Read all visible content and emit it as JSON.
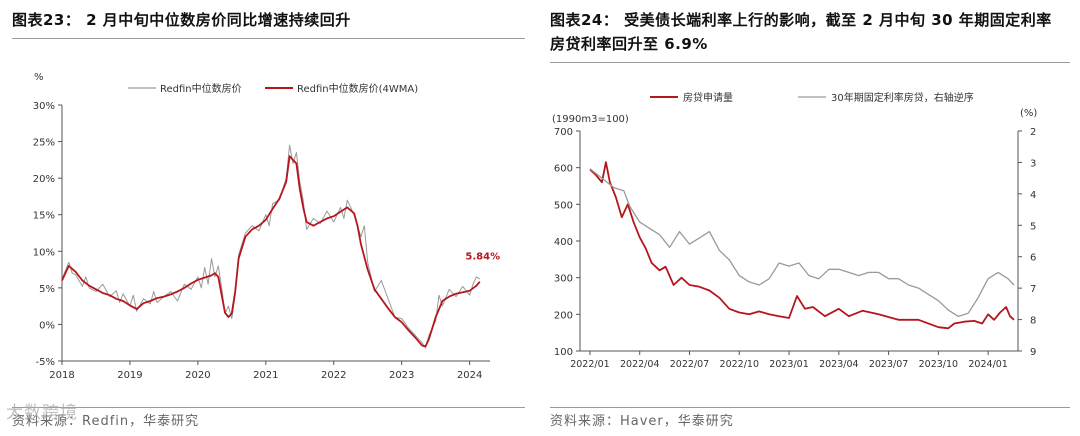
{
  "colors": {
    "red": "#b5161c",
    "grey": "#9a9a9a",
    "axis": "#555555",
    "text": "#333333"
  },
  "watermark": "大数跨境",
  "chart_data": [
    {
      "type": "line",
      "title": "图表23： 2 月中旬中位数房价同比增速持续回升",
      "ylabel": "%",
      "ylim": [
        -5,
        30
      ],
      "yticks": [
        -5,
        0,
        5,
        10,
        15,
        20,
        25,
        30
      ],
      "ytick_labels": [
        "-5%",
        "0%",
        "5%",
        "10%",
        "15%",
        "20%",
        "25%",
        "30%"
      ],
      "xlim": [
        2018,
        2024.3
      ],
      "xticks": [
        2018,
        2019,
        2020,
        2021,
        2022,
        2023,
        2024
      ],
      "xtick_labels": [
        "2018",
        "2019",
        "2020",
        "2021",
        "2022",
        "2023",
        "2024"
      ],
      "annotation": {
        "text": "5.84%",
        "x": 2024.12,
        "y": 5.84
      },
      "legend": "top-center",
      "series": [
        {
          "name": "Redfin中位数房价",
          "color": "#9a9a9a",
          "x": [
            2018.0,
            2018.1,
            2018.15,
            2018.2,
            2018.3,
            2018.35,
            2018.4,
            2018.5,
            2018.6,
            2018.7,
            2018.8,
            2018.85,
            2018.9,
            2019.0,
            2019.05,
            2019.1,
            2019.2,
            2019.3,
            2019.35,
            2019.4,
            2019.5,
            2019.6,
            2019.7,
            2019.8,
            2019.9,
            2020.0,
            2020.05,
            2020.1,
            2020.15,
            2020.2,
            2020.25,
            2020.3,
            2020.35,
            2020.4,
            2020.45,
            2020.5,
            2020.55,
            2020.6,
            2020.7,
            2020.8,
            2020.9,
            2021.0,
            2021.05,
            2021.1,
            2021.2,
            2021.3,
            2021.35,
            2021.4,
            2021.45,
            2021.5,
            2021.55,
            2021.6,
            2021.7,
            2021.8,
            2021.9,
            2022.0,
            2022.1,
            2022.15,
            2022.2,
            2022.3,
            2022.4,
            2022.45,
            2022.5,
            2022.6,
            2022.7,
            2022.8,
            2022.9,
            2023.0,
            2023.1,
            2023.2,
            2023.3,
            2023.35,
            2023.4,
            2023.5,
            2023.55,
            2023.6,
            2023.7,
            2023.8,
            2023.9,
            2024.0,
            2024.05,
            2024.1,
            2024.15
          ],
          "y": [
            6.2,
            8.5,
            7.0,
            6.8,
            5.2,
            6.5,
            5.0,
            4.5,
            5.5,
            3.8,
            4.6,
            3.0,
            4.2,
            2.5,
            4.0,
            1.8,
            3.5,
            2.8,
            4.5,
            3.0,
            3.8,
            4.5,
            3.2,
            5.5,
            4.8,
            6.5,
            5.0,
            7.8,
            5.5,
            9.0,
            6.5,
            8.0,
            5.0,
            1.5,
            2.5,
            0.8,
            4.0,
            9.5,
            12.5,
            13.5,
            12.8,
            15.0,
            13.5,
            16.5,
            17.0,
            20.0,
            24.5,
            22.0,
            23.5,
            19.5,
            17.0,
            13.0,
            14.5,
            13.8,
            15.5,
            14.0,
            16.0,
            14.5,
            17.0,
            15.0,
            12.0,
            13.5,
            8.5,
            4.5,
            6.0,
            3.5,
            1.0,
            0.8,
            -0.5,
            -1.5,
            -2.5,
            -3.2,
            -1.5,
            0.5,
            4.0,
            2.5,
            4.8,
            3.8,
            5.2,
            4.0,
            5.5,
            6.5,
            6.2
          ]
        },
        {
          "name": "Redfin中位数房价(4WMA)",
          "color": "#b5161c",
          "x": [
            2018.0,
            2018.1,
            2018.2,
            2018.3,
            2018.4,
            2018.5,
            2018.6,
            2018.7,
            2018.8,
            2018.9,
            2019.0,
            2019.1,
            2019.2,
            2019.3,
            2019.4,
            2019.5,
            2019.6,
            2019.7,
            2019.8,
            2019.9,
            2020.0,
            2020.1,
            2020.2,
            2020.25,
            2020.3,
            2020.35,
            2020.4,
            2020.45,
            2020.5,
            2020.55,
            2020.6,
            2020.7,
            2020.8,
            2020.9,
            2021.0,
            2021.1,
            2021.2,
            2021.3,
            2021.35,
            2021.4,
            2021.45,
            2021.5,
            2021.55,
            2021.6,
            2021.7,
            2021.8,
            2021.9,
            2022.0,
            2022.1,
            2022.2,
            2022.3,
            2022.35,
            2022.4,
            2022.5,
            2022.6,
            2022.7,
            2022.8,
            2022.9,
            2023.0,
            2023.1,
            2023.2,
            2023.3,
            2023.35,
            2023.4,
            2023.5,
            2023.6,
            2023.7,
            2023.8,
            2023.9,
            2024.0,
            2024.1,
            2024.15
          ],
          "y": [
            6.0,
            8.0,
            7.2,
            6.0,
            5.3,
            4.8,
            4.3,
            4.0,
            3.5,
            3.2,
            2.6,
            2.1,
            2.9,
            3.2,
            3.6,
            3.8,
            4.1,
            4.5,
            5.0,
            5.6,
            6.1,
            6.4,
            6.7,
            7.0,
            6.5,
            4.0,
            1.6,
            1.0,
            1.5,
            4.5,
            9.0,
            12.0,
            13.0,
            13.5,
            14.3,
            15.8,
            17.2,
            19.5,
            23.0,
            22.5,
            22.0,
            18.5,
            16.0,
            14.0,
            13.5,
            14.0,
            14.5,
            14.8,
            15.4,
            16.0,
            15.2,
            13.5,
            11.0,
            7.5,
            4.8,
            3.5,
            2.2,
            1.0,
            0.3,
            -0.8,
            -1.8,
            -2.9,
            -3.0,
            -2.0,
            1.0,
            3.2,
            3.8,
            4.2,
            4.4,
            4.6,
            5.3,
            5.84
          ]
        }
      ],
      "source": "资料来源：Redfin，华泰研究"
    },
    {
      "type": "line",
      "title": "图表24： 受美债长端利率上行的影响，截至 2 月中旬 30 年期固定利率房贷利率回升至 6.9%",
      "title_line1": "图表24： 受美债长端利率上行的影响，截至 2 月中旬 30 年期固定利率",
      "title_line2": "房贷利率回升至 6.9%",
      "ylabel": "(1990m3=100)",
      "ylim": [
        100,
        700
      ],
      "yticks": [
        100,
        200,
        300,
        400,
        500,
        600,
        700
      ],
      "ytick_labels": [
        "100",
        "200",
        "300",
        "400",
        "500",
        "600",
        "700"
      ],
      "y2label": "(%)",
      "y2lim": [
        2,
        9
      ],
      "y2_inverted": true,
      "y2ticks": [
        2,
        3,
        4,
        5,
        6,
        7,
        8,
        9
      ],
      "y2tick_labels": [
        "2",
        "3",
        "4",
        "5",
        "6",
        "7",
        "8",
        "9"
      ],
      "xlim": [
        2021.95,
        2024.15
      ],
      "xticks": [
        2022.0,
        2022.25,
        2022.5,
        2022.75,
        2023.0,
        2023.25,
        2023.5,
        2023.75,
        2024.0
      ],
      "xtick_labels": [
        "2022/01",
        "2022/04",
        "2022/07",
        "2022/10",
        "2023/01",
        "2023/04",
        "2023/07",
        "2023/10",
        "2024/01"
      ],
      "legend": "top",
      "series": [
        {
          "name": "房贷申请量",
          "color": "#b5161c",
          "axis": "left",
          "x": [
            2022.0,
            2022.03,
            2022.06,
            2022.08,
            2022.1,
            2022.13,
            2022.16,
            2022.19,
            2022.22,
            2022.25,
            2022.28,
            2022.31,
            2022.35,
            2022.38,
            2022.42,
            2022.46,
            2022.5,
            2022.55,
            2022.6,
            2022.65,
            2022.7,
            2022.75,
            2022.8,
            2022.85,
            2022.9,
            2022.95,
            2023.0,
            2023.04,
            2023.08,
            2023.12,
            2023.18,
            2023.25,
            2023.3,
            2023.37,
            2023.45,
            2023.55,
            2023.65,
            2023.75,
            2023.8,
            2023.83,
            2023.88,
            2023.93,
            2023.97,
            2024.0,
            2024.03,
            2024.06,
            2024.09,
            2024.11,
            2024.13
          ],
          "y": [
            595,
            580,
            560,
            615,
            560,
            520,
            465,
            500,
            450,
            410,
            380,
            340,
            320,
            330,
            280,
            300,
            280,
            275,
            265,
            245,
            215,
            205,
            200,
            208,
            200,
            195,
            190,
            250,
            215,
            220,
            195,
            215,
            195,
            210,
            200,
            185,
            185,
            165,
            162,
            175,
            180,
            182,
            175,
            200,
            185,
            205,
            220,
            195,
            185
          ]
        },
        {
          "name": "30年期固定利率房贷，右轴逆序",
          "color": "#9a9a9a",
          "axis": "right",
          "x": [
            2022.0,
            2022.04,
            2022.08,
            2022.12,
            2022.17,
            2022.2,
            2022.25,
            2022.3,
            2022.35,
            2022.4,
            2022.45,
            2022.5,
            2022.55,
            2022.6,
            2022.65,
            2022.7,
            2022.75,
            2022.8,
            2022.85,
            2022.9,
            2022.95,
            2023.0,
            2023.05,
            2023.1,
            2023.15,
            2023.2,
            2023.25,
            2023.3,
            2023.35,
            2023.4,
            2023.45,
            2023.5,
            2023.55,
            2023.6,
            2023.65,
            2023.7,
            2023.75,
            2023.8,
            2023.85,
            2023.9,
            2023.95,
            2024.0,
            2024.05,
            2024.1,
            2024.13
          ],
          "y": [
            3.2,
            3.4,
            3.6,
            3.8,
            3.9,
            4.4,
            4.9,
            5.1,
            5.3,
            5.7,
            5.2,
            5.6,
            5.4,
            5.2,
            5.8,
            6.1,
            6.6,
            6.8,
            6.9,
            6.7,
            6.2,
            6.3,
            6.2,
            6.6,
            6.7,
            6.4,
            6.4,
            6.5,
            6.6,
            6.5,
            6.5,
            6.7,
            6.7,
            6.9,
            7.0,
            7.2,
            7.4,
            7.7,
            7.9,
            7.8,
            7.3,
            6.7,
            6.5,
            6.7,
            6.9
          ]
        }
      ],
      "source": "资料来源：Haver，华泰研究"
    }
  ]
}
